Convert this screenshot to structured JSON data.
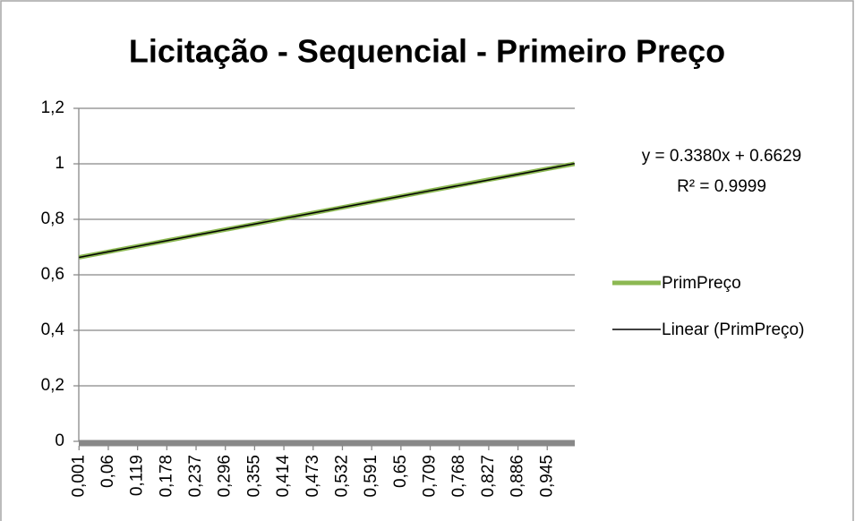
{
  "chart_data": {
    "type": "line",
    "title": "Licitação - Sequencial - Primeiro Preço",
    "categories": [
      "0,001",
      "0,06",
      "0,119",
      "0,178",
      "0,237",
      "0,296",
      "0,355",
      "0,414",
      "0,473",
      "0,532",
      "0,591",
      "0,65",
      "0,709",
      "0,768",
      "0,827",
      "0,886",
      "0,945",
      null
    ],
    "series": [
      {
        "name": "PrimPreço",
        "color": "#8cb852",
        "values": [
          0.663,
          0.683,
          0.703,
          0.723,
          0.743,
          0.763,
          0.783,
          0.803,
          0.823,
          0.843,
          0.863,
          0.883,
          0.903,
          0.923,
          0.943,
          0.962,
          0.982,
          1.0
        ]
      },
      {
        "name": "Linear (PrimPreço)",
        "color": "#000000",
        "values": [
          0.663,
          0.683,
          0.703,
          0.723,
          0.743,
          0.763,
          0.783,
          0.803,
          0.823,
          0.843,
          0.863,
          0.883,
          0.903,
          0.922,
          0.942,
          0.962,
          0.982,
          1.001
        ]
      }
    ],
    "annotations": [
      "y = 0.3380x + 0.6629",
      "R² = 0.9999"
    ],
    "ylim": [
      0,
      1.2
    ],
    "yticks": [
      0,
      {
        "value": 0.2,
        "label": "0,2"
      },
      {
        "value": 0.4,
        "label": "0,4"
      },
      {
        "value": 0.6,
        "label": "0,6"
      },
      {
        "value": 0.8,
        "label": "0,8"
      },
      1,
      {
        "value": 1.2,
        "label": "1,2"
      }
    ],
    "grid": true,
    "legend": "right"
  }
}
